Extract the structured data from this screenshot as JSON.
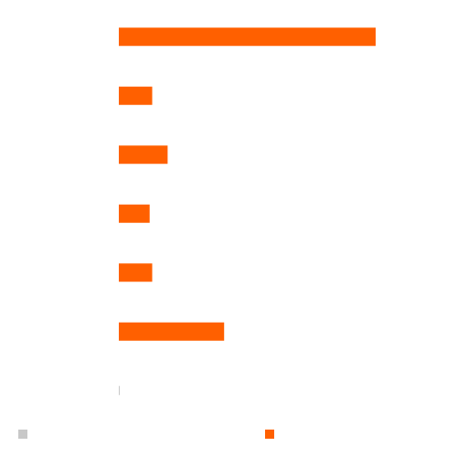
{
  "chart_data": {
    "type": "hbar",
    "categories": [
      null,
      null,
      null,
      null,
      null,
      null,
      null
    ],
    "series": [
      {
        "color": "#c8c8c8",
        "values": [
          null,
          null,
          null,
          null,
          null,
          null,
          0
        ]
      },
      {
        "color": "#ff6000",
        "values": [
          100,
          13,
          19,
          12,
          13,
          41,
          null
        ]
      }
    ],
    "xlim": [
      0,
      100
    ]
  }
}
